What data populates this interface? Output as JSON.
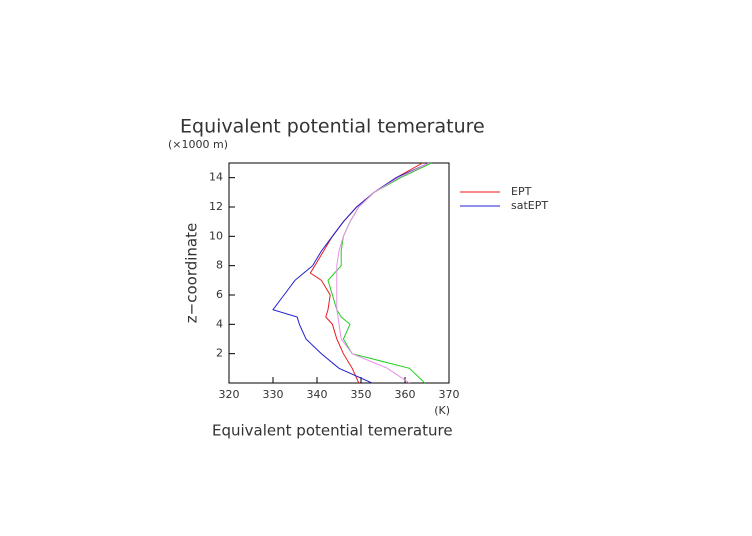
{
  "chart_data": {
    "type": "line",
    "title": "Equivalent potential temerature",
    "y_unit": "(×1000 m)",
    "x_unit": "(K)",
    "x_label": "Equivalent potential temerature",
    "y_label": "z−coordinate",
    "z": [
      0,
      1,
      2,
      3,
      4,
      4.5,
      5,
      6,
      7,
      7.5,
      8,
      9,
      10,
      11,
      12,
      13,
      14,
      15
    ],
    "series": [
      {
        "name": "EPT",
        "color": "#e8191e",
        "values": [
          349.5,
          348,
          346,
          344.5,
          343.5,
          342,
          342.5,
          343,
          341,
          338.5,
          339.5,
          341.5,
          343.5,
          346,
          349,
          353,
          358,
          364
        ]
      },
      {
        "name": "satEPT",
        "color": "#2020d0",
        "values": [
          352.5,
          345,
          341,
          337.5,
          336,
          335.5,
          330,
          332.5,
          335,
          337,
          339,
          341,
          343.5,
          346,
          349,
          353,
          358,
          365.5
        ]
      },
      {
        "color": "#20d020",
        "values": [
          364.5,
          361,
          348,
          346,
          347.5,
          345.5,
          344.5,
          343.5,
          342.5,
          344,
          345.5,
          345.5,
          346,
          347.5,
          349.5,
          353,
          359,
          366
        ]
      },
      {
        "color": "#e890e8",
        "values": [
          361,
          356,
          348,
          345.5,
          345,
          344.8,
          344.5,
          344.5,
          344.5,
          344.5,
          344.5,
          345,
          346,
          347.5,
          349.5,
          353,
          358.5,
          365.5
        ]
      }
    ],
    "xlim": [
      320,
      370
    ],
    "xticks": [
      320,
      330,
      340,
      350,
      360,
      370
    ],
    "ylim": [
      0,
      15
    ],
    "yticks": [
      2,
      4,
      6,
      8,
      10,
      12,
      14
    ]
  }
}
